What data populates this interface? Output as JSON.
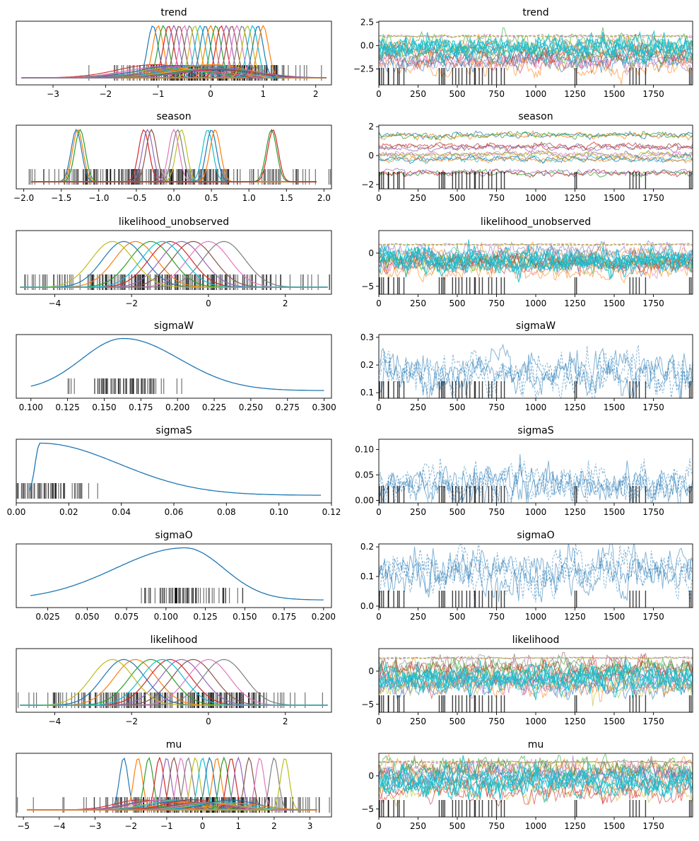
{
  "figure": {
    "name": "ArviZ trace plot"
  },
  "colors": {
    "palette": [
      "#1f77b4",
      "#ff7f0e",
      "#2ca02c",
      "#d62728",
      "#9467bd",
      "#8c564b",
      "#e377c2",
      "#7f7f7f",
      "#bcbd22",
      "#17becf"
    ],
    "single": "#1f77b4",
    "rug": "#000000"
  },
  "chart_data": [
    {
      "type": "line",
      "panel": "density",
      "title": "trend",
      "xlim": [
        -3.7,
        2.3
      ],
      "xticks": [
        -3,
        -2,
        -1,
        0,
        1,
        2
      ],
      "tick_labels": [
        "−3",
        "−2",
        "−1",
        "0",
        "1",
        "2"
      ],
      "series_centers": [
        -1.1,
        -1.0,
        -0.9,
        -0.8,
        -0.7,
        -0.6,
        -0.5,
        -0.4,
        -0.3,
        -0.2,
        -0.1,
        0.0,
        0.1,
        0.2,
        0.3,
        0.4,
        0.5,
        0.6,
        0.7,
        0.8,
        0.9,
        1.0
      ],
      "series_width": 0.1,
      "series_peak": 0.97,
      "broad_peak": 0.25,
      "x_range": [
        -3.6,
        2.2
      ]
    },
    {
      "type": "line",
      "panel": "trace",
      "title": "trend",
      "xlim": [
        0,
        2000
      ],
      "ylim": [
        -4.2,
        2.6
      ],
      "xticks": [
        0,
        250,
        500,
        750,
        1000,
        1250,
        1500,
        1750
      ],
      "yticks": [
        2.5,
        0.0,
        -2.5
      ],
      "ytick_labels": [
        "2.5",
        "0.0",
        "−2.5"
      ],
      "band": [
        -3.0,
        1.2
      ],
      "dense_center": -0.2
    },
    {
      "type": "line",
      "panel": "density",
      "title": "season",
      "xlim": [
        -2.1,
        2.1
      ],
      "xticks": [
        -2.0,
        -1.5,
        -1.0,
        -0.5,
        0.0,
        0.5,
        1.0,
        1.5,
        2.0
      ],
      "tick_labels": [
        "−2.0",
        "−1.5",
        "−1.0",
        "−0.5",
        "0.0",
        "0.5",
        "1.0",
        "1.5",
        "2.0"
      ],
      "series_centers": [
        -1.3,
        -1.28,
        -1.25,
        -0.4,
        -0.35,
        -0.3,
        0.0,
        0.05,
        0.1,
        0.45,
        0.5,
        0.55,
        1.3,
        1.32
      ],
      "series_width": 0.07,
      "series_peak": 0.97,
      "x_range": [
        -1.9,
        1.9
      ]
    },
    {
      "type": "line",
      "panel": "trace",
      "title": "season",
      "xlim": [
        0,
        2000
      ],
      "ylim": [
        -2.3,
        2.1
      ],
      "xticks": [
        0,
        250,
        500,
        750,
        1000,
        1250,
        1500,
        1750
      ],
      "yticks": [
        2,
        0,
        -2
      ],
      "ytick_labels": [
        "2",
        "0",
        "−2"
      ],
      "levels": [
        1.35,
        0.6,
        0.05,
        -0.3,
        -1.2
      ]
    },
    {
      "type": "line",
      "panel": "density",
      "title": "likelihood_unobserved",
      "xlim": [
        -5.0,
        3.2
      ],
      "xticks": [
        -4,
        -2,
        0,
        2
      ],
      "tick_labels": [
        "−4",
        "−2",
        "0",
        "2"
      ],
      "series_centers": [
        -2.2,
        -1.9,
        -1.5,
        -1.0,
        -0.7,
        -0.4,
        0.0,
        0.4,
        -2.5,
        -1.2
      ],
      "series_width": 0.55,
      "series_peak": 0.85,
      "x_range": [
        -4.9,
        3.1
      ]
    },
    {
      "type": "line",
      "panel": "trace",
      "title": "likelihood_unobserved",
      "xlim": [
        0,
        2000
      ],
      "ylim": [
        -6.2,
        3.4
      ],
      "xticks": [
        0,
        250,
        500,
        750,
        1000,
        1250,
        1500,
        1750
      ],
      "yticks": [
        0,
        -5
      ],
      "ytick_labels": [
        "0",
        "−5"
      ],
      "band": [
        -4.5,
        1.5
      ],
      "dense_center": -1.2
    },
    {
      "type": "line",
      "panel": "density",
      "title": "sigmaW",
      "xlim": [
        0.09,
        0.305
      ],
      "xticks": [
        0.1,
        0.125,
        0.15,
        0.175,
        0.2,
        0.225,
        0.25,
        0.275,
        0.3
      ],
      "tick_labels": [
        "0.100",
        "0.125",
        "0.150",
        "0.175",
        "0.200",
        "0.225",
        "0.250",
        "0.275",
        "0.300"
      ],
      "mode": 0.163,
      "x_range": [
        0.1,
        0.3
      ]
    },
    {
      "type": "line",
      "panel": "trace",
      "title": "sigmaW",
      "xlim": [
        0,
        2000
      ],
      "ylim": [
        0.08,
        0.31
      ],
      "xticks": [
        0,
        250,
        500,
        750,
        1000,
        1250,
        1500,
        1750
      ],
      "yticks": [
        0.3,
        0.2,
        0.1
      ],
      "ytick_labels": [
        "0.3",
        "0.2",
        "0.1"
      ],
      "center": 0.17,
      "spread": 0.03
    },
    {
      "type": "line",
      "panel": "density",
      "title": "sigmaS",
      "xlim": [
        0.0,
        0.12
      ],
      "xticks": [
        0.0,
        0.02,
        0.04,
        0.06,
        0.08,
        0.1,
        0.12
      ],
      "tick_labels": [
        "0.00",
        "0.02",
        "0.04",
        "0.06",
        "0.08",
        "0.10",
        "0.12"
      ],
      "mode": 0.009,
      "x_range": [
        0.005,
        0.116
      ]
    },
    {
      "type": "line",
      "panel": "trace",
      "title": "sigmaS",
      "xlim": [
        0,
        2000
      ],
      "ylim": [
        -0.005,
        0.12
      ],
      "xticks": [
        0,
        250,
        500,
        750,
        1000,
        1250,
        1500,
        1750
      ],
      "yticks": [
        0.1,
        0.05,
        0.0
      ],
      "ytick_labels": [
        "0.10",
        "0.05",
        "0.00"
      ],
      "center": 0.03,
      "spread": 0.015
    },
    {
      "type": "line",
      "panel": "density",
      "title": "sigmaO",
      "xlim": [
        0.005,
        0.205
      ],
      "xticks": [
        0.025,
        0.05,
        0.075,
        0.1,
        0.125,
        0.15,
        0.175,
        0.2
      ],
      "tick_labels": [
        "0.025",
        "0.050",
        "0.075",
        "0.100",
        "0.125",
        "0.150",
        "0.175",
        "0.200"
      ],
      "mode": 0.112,
      "x_range": [
        0.014,
        0.2
      ]
    },
    {
      "type": "line",
      "panel": "trace",
      "title": "sigmaO",
      "xlim": [
        0,
        2000
      ],
      "ylim": [
        -0.005,
        0.21
      ],
      "xticks": [
        0,
        250,
        500,
        750,
        1000,
        1250,
        1500,
        1750
      ],
      "yticks": [
        0.2,
        0.1,
        0.0
      ],
      "ytick_labels": [
        "0.2",
        "0.1",
        "0.0"
      ],
      "center": 0.12,
      "spread": 0.03
    },
    {
      "type": "line",
      "panel": "density",
      "title": "likelihood",
      "xlim": [
        -5.0,
        3.2
      ],
      "xticks": [
        -4,
        -2,
        0,
        2
      ],
      "tick_labels": [
        "−4",
        "−2",
        "0",
        "2"
      ],
      "series_centers": [
        -2.2,
        -1.9,
        -1.5,
        -1.0,
        -0.7,
        -0.4,
        0.0,
        0.4,
        -2.5,
        -1.2
      ],
      "series_width": 0.55,
      "series_peak": 0.85,
      "x_range": [
        -4.9,
        3.1
      ]
    },
    {
      "type": "line",
      "panel": "trace",
      "title": "likelihood",
      "xlim": [
        0,
        2000
      ],
      "ylim": [
        -6.2,
        3.4
      ],
      "xticks": [
        0,
        250,
        500,
        750,
        1000,
        1250,
        1500,
        1750
      ],
      "yticks": [
        0,
        -5
      ],
      "ytick_labels": [
        "0",
        "−5"
      ],
      "band": [
        -4.5,
        2.2
      ],
      "dense_center": -1.2
    },
    {
      "type": "line",
      "panel": "density",
      "title": "mu",
      "xlim": [
        -5.2,
        3.6
      ],
      "xticks": [
        -5,
        -4,
        -3,
        -2,
        -1,
        0,
        1,
        2,
        3
      ],
      "tick_labels": [
        "−5",
        "−4",
        "−3",
        "−2",
        "−1",
        "0",
        "1",
        "2",
        "3"
      ],
      "series_centers": [
        -2.2,
        -1.8,
        -1.5,
        -1.2,
        -1.0,
        -0.8,
        -0.6,
        -0.4,
        -0.2,
        0.0,
        0.2,
        0.4,
        0.6,
        0.8,
        1.0,
        1.3,
        1.6,
        2.0,
        2.3
      ],
      "series_width": 0.12,
      "series_peak": 0.97,
      "broad_peak": 0.2,
      "x_range": [
        -4.9,
        3.2
      ]
    },
    {
      "type": "line",
      "panel": "trace",
      "title": "mu",
      "xlim": [
        0,
        2000
      ],
      "ylim": [
        -6.2,
        3.4
      ],
      "xticks": [
        0,
        250,
        500,
        750,
        1000,
        1250,
        1500,
        1750
      ],
      "yticks": [
        0,
        -5
      ],
      "ytick_labels": [
        "0",
        "−5"
      ],
      "band": [
        -4.5,
        2.3
      ],
      "dense_center": -1.0
    }
  ],
  "rug_draws": [
    5,
    18,
    30,
    60,
    62,
    95,
    120,
    130,
    160,
    385,
    400,
    410,
    420,
    470,
    490,
    510,
    530,
    560,
    580,
    610,
    615,
    640,
    660,
    700,
    720,
    750,
    780,
    800,
    1250,
    1260,
    1600,
    1620,
    1640,
    1660,
    1700,
    1980,
    1990
  ]
}
